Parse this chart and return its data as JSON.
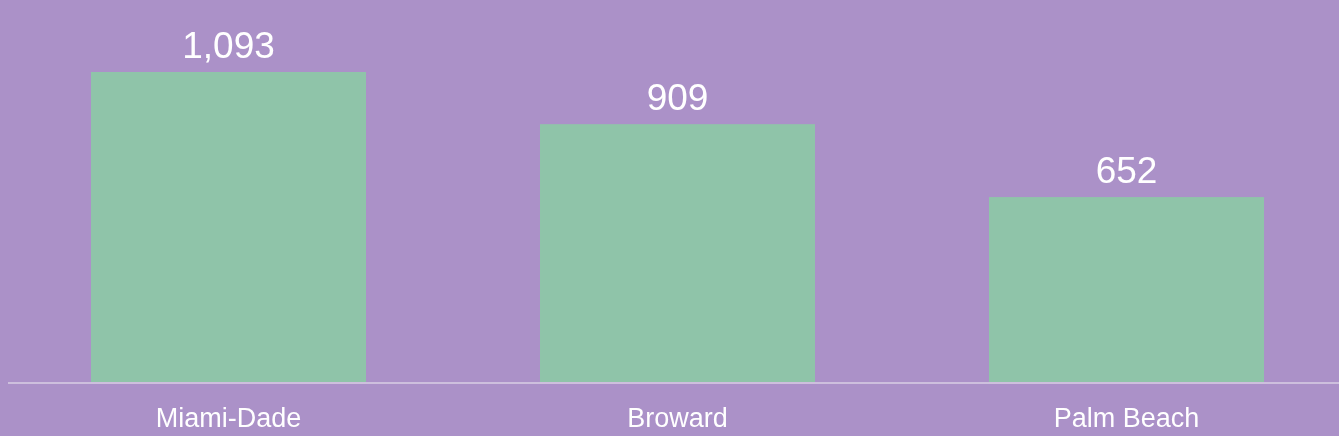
{
  "chart_data": {
    "type": "bar",
    "categories": [
      "Miami-Dade",
      "Broward",
      "Palm Beach"
    ],
    "values": [
      1093,
      909,
      652
    ],
    "value_labels": [
      "1,093",
      "909",
      "652"
    ],
    "color": "#8fc4a9"
  }
}
